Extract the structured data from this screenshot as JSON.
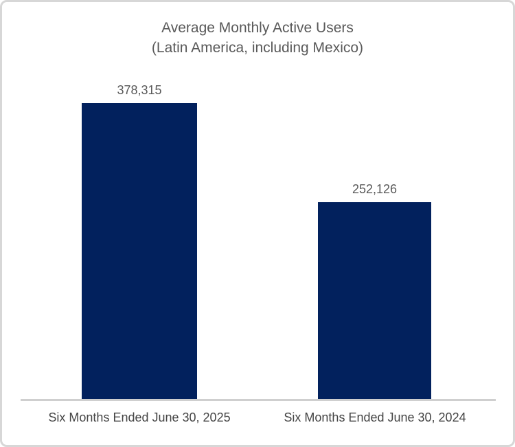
{
  "chart_data": {
    "type": "bar",
    "title": "Average Monthly Active Users",
    "subtitle": "(Latin America, including Mexico)",
    "categories": [
      "Six Months Ended June 30, 2025",
      "Six Months Ended June 30, 2024"
    ],
    "values": [
      378315,
      252126
    ],
    "value_labels": [
      "378,315",
      "252,126"
    ],
    "xlabel": "",
    "ylabel": "",
    "ylim": [
      0,
      400000
    ],
    "grid": false,
    "legend": false,
    "y_axis_visible": false,
    "colors": {
      "bar": "#02215D",
      "axis_line": "#cfcfcf",
      "title_text": "#595959",
      "value_text": "#595959",
      "category_text": "#454545",
      "frame_border": "#d7d7d7",
      "background": "#ffffff"
    }
  }
}
